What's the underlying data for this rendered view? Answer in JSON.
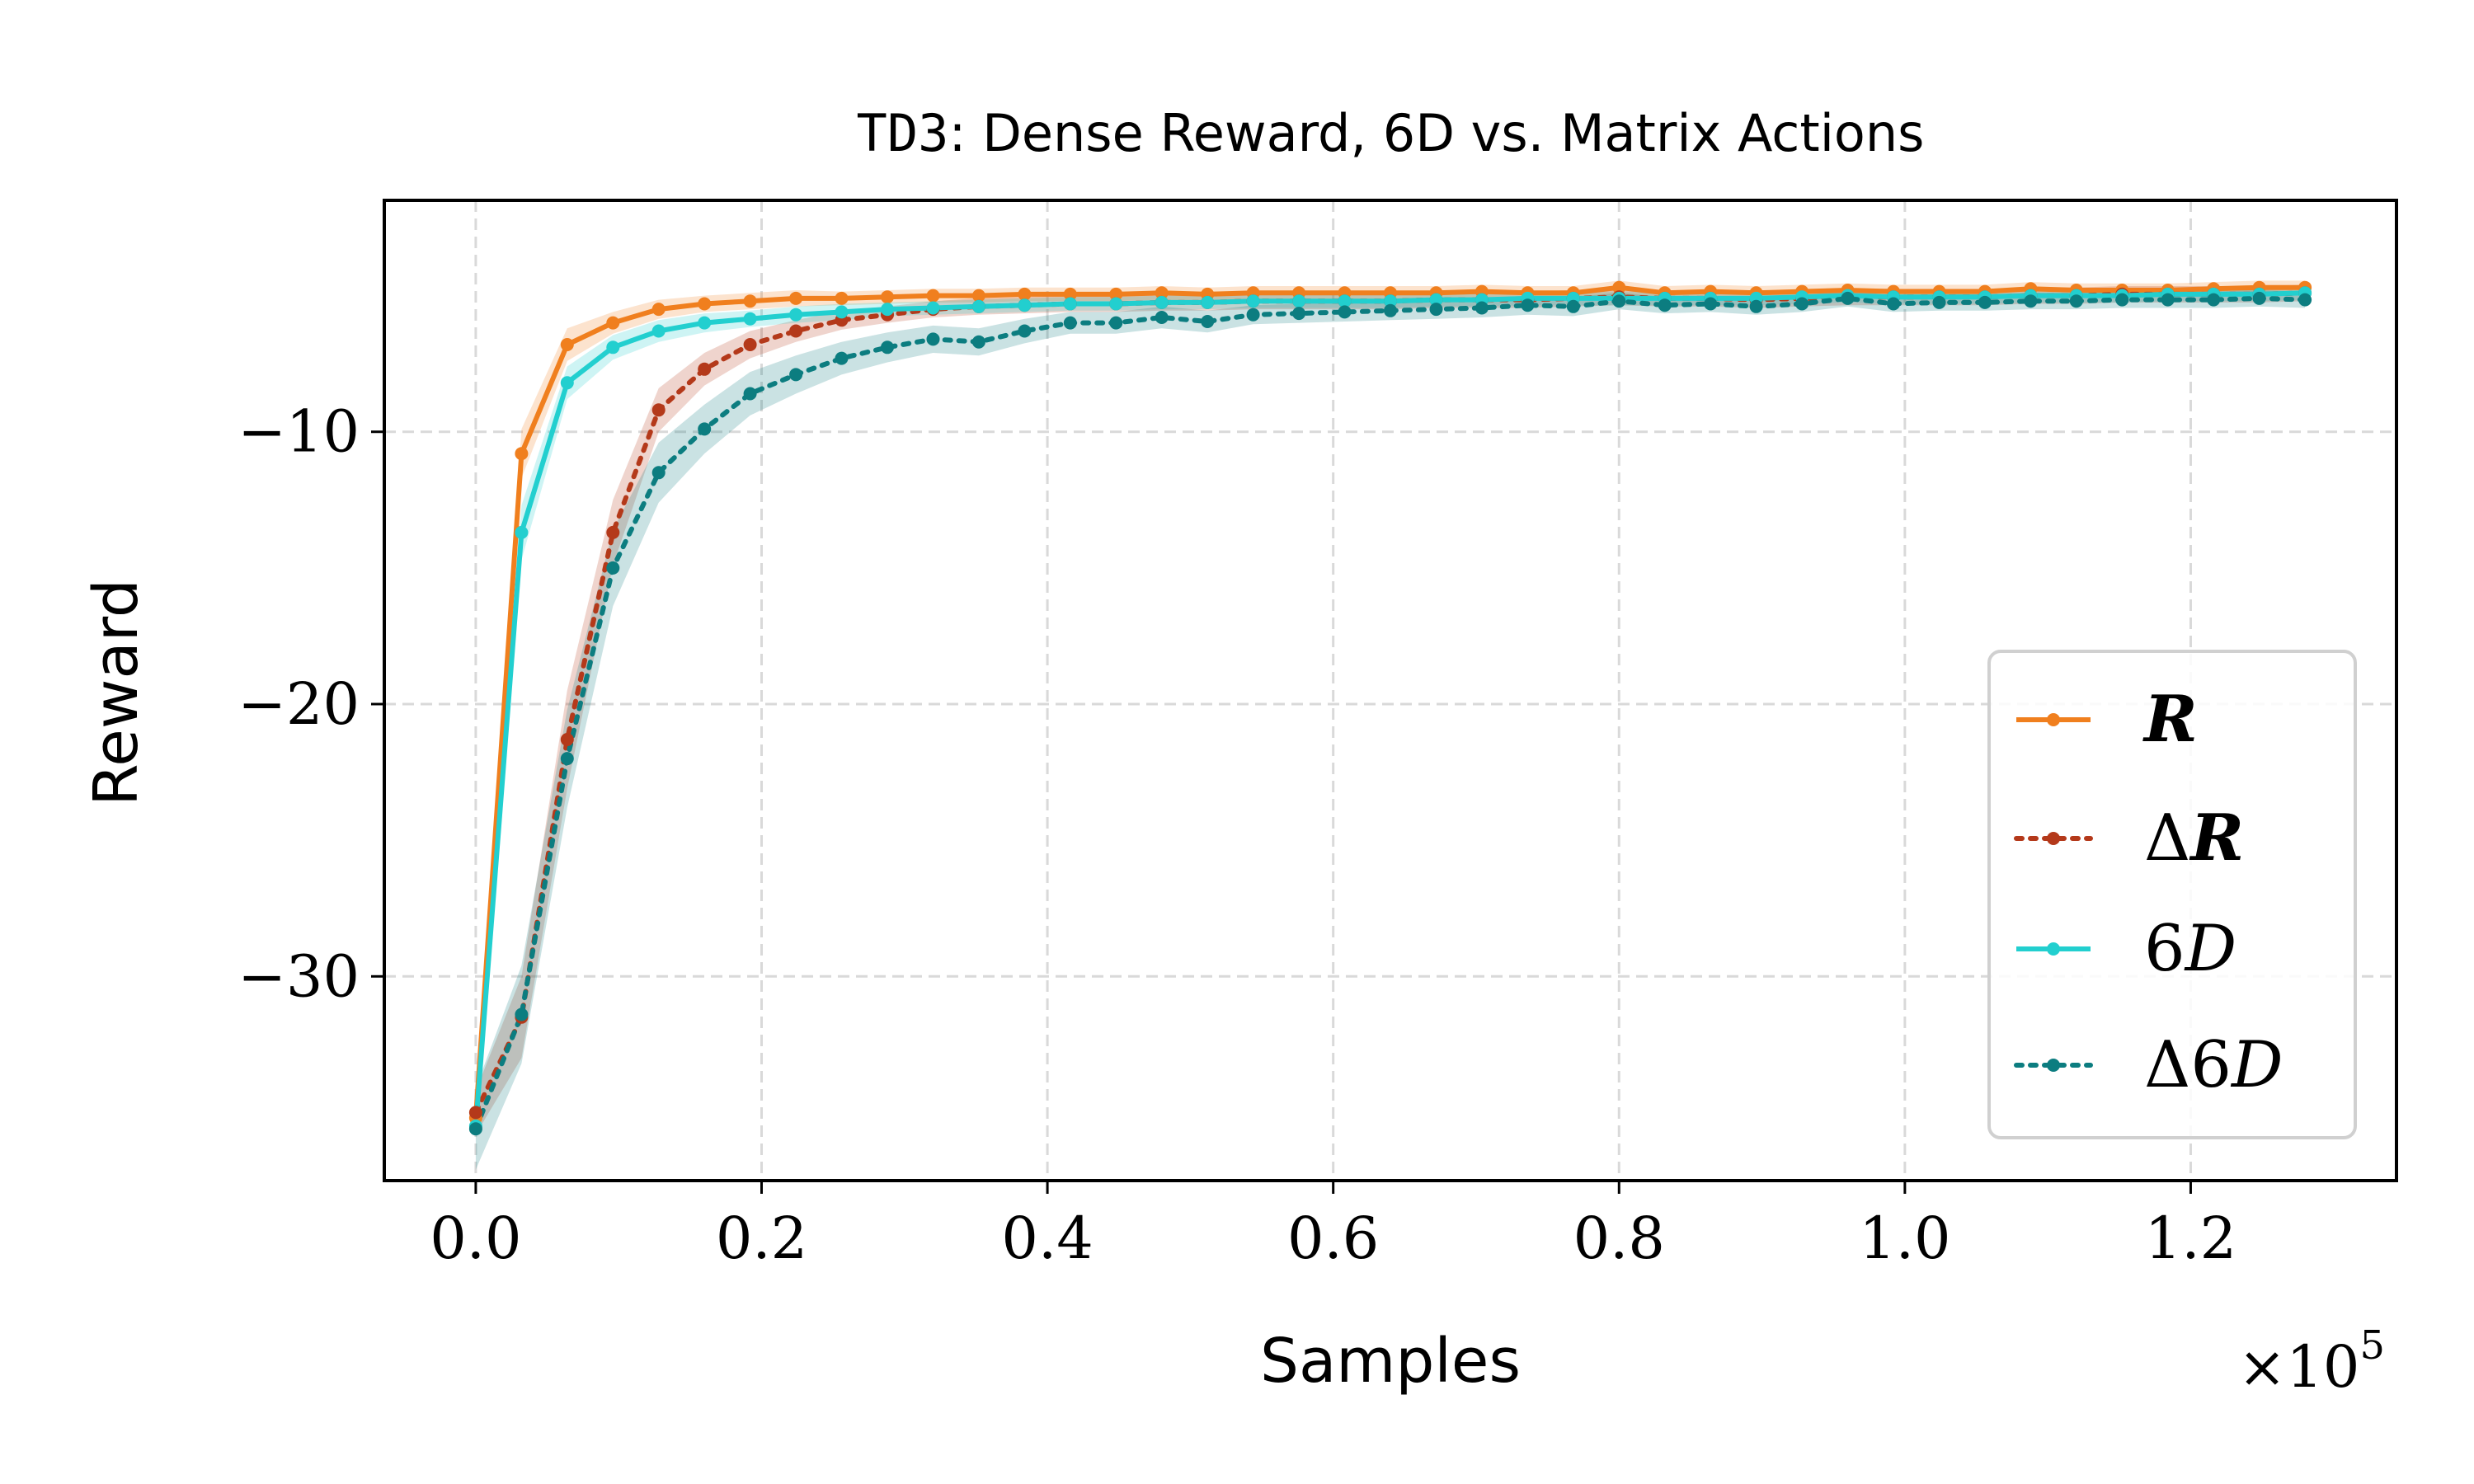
{
  "chart_data": {
    "type": "line",
    "title_code": "TD3",
    "title_rest": ": Dense Reward, 6D vs. Matrix Actions",
    "xlabel": "Samples",
    "ylabel": "Reward",
    "x_multiplier": "×10",
    "x_multiplier_exp": "5",
    "xlim": [
      -0.064,
      1.344
    ],
    "ylim": [
      -37.5,
      -1.5
    ],
    "xticks": [
      0.0,
      0.2,
      0.4,
      0.6,
      0.8,
      1.0,
      1.2
    ],
    "xtick_labels": [
      "0.0",
      "0.2",
      "0.4",
      "0.6",
      "0.8",
      "1.0",
      "1.2"
    ],
    "yticks": [
      -10,
      -20,
      -30
    ],
    "ytick_labels": [
      "−10",
      "−20",
      "−30"
    ],
    "grid": true,
    "legend_position": "lower-right",
    "x": [
      0,
      0.032,
      0.064,
      0.096,
      0.128,
      0.16,
      0.192,
      0.224,
      0.256,
      0.288,
      0.32,
      0.352,
      0.384,
      0.416,
      0.448,
      0.48,
      0.512,
      0.544,
      0.576,
      0.608,
      0.64,
      0.672,
      0.704,
      0.736,
      0.768,
      0.8,
      0.832,
      0.864,
      0.896,
      0.928,
      0.96,
      0.992,
      1.024,
      1.056,
      1.088,
      1.12,
      1.152,
      1.184,
      1.216,
      1.248,
      1.28
    ],
    "series": [
      {
        "name": "R",
        "label_prefix": "",
        "label_main": "R",
        "label_style": "bold-italic",
        "color": "#f07f1e",
        "dash": "solid",
        "values": [
          -35.2,
          -10.8,
          -6.8,
          -6.0,
          -5.5,
          -5.3,
          -5.2,
          -5.1,
          -5.1,
          -5.05,
          -5.0,
          -5.0,
          -4.95,
          -4.95,
          -4.95,
          -4.9,
          -4.95,
          -4.9,
          -4.9,
          -4.9,
          -4.9,
          -4.9,
          -4.85,
          -4.9,
          -4.9,
          -4.7,
          -4.9,
          -4.85,
          -4.9,
          -4.85,
          -4.8,
          -4.85,
          -4.85,
          -4.85,
          -4.75,
          -4.8,
          -4.8,
          -4.8,
          -4.75,
          -4.7,
          -4.7
        ],
        "band": [
          0.5,
          0.9,
          0.6,
          0.4,
          0.35,
          0.3,
          0.3,
          0.3,
          0.25,
          0.25,
          0.25,
          0.25,
          0.25,
          0.25,
          0.25,
          0.25,
          0.25,
          0.25,
          0.25,
          0.25,
          0.25,
          0.25,
          0.25,
          0.25,
          0.25,
          0.25,
          0.25,
          0.25,
          0.25,
          0.25,
          0.25,
          0.25,
          0.25,
          0.25,
          0.25,
          0.25,
          0.25,
          0.25,
          0.25,
          0.25,
          0.25
        ]
      },
      {
        "name": "ΔR",
        "label_prefix": "Δ",
        "label_main": "R",
        "label_style": "bold-italic",
        "color": "#b4391a",
        "dash": "dotted",
        "values": [
          -35.0,
          -31.5,
          -21.3,
          -13.7,
          -9.2,
          -7.7,
          -6.8,
          -6.3,
          -5.9,
          -5.7,
          -5.5,
          -5.4,
          -5.35,
          -5.3,
          -5.3,
          -5.25,
          -5.25,
          -5.2,
          -5.2,
          -5.2,
          -5.2,
          -5.15,
          -5.15,
          -5.15,
          -5.1,
          -5.05,
          -5.1,
          -5.1,
          -5.15,
          -5.1,
          -5.05,
          -5.05,
          -5.05,
          -5.05,
          -5.0,
          -5.0,
          -4.95,
          -4.95,
          -4.95,
          -4.95,
          -4.9
        ],
        "band": [
          0.8,
          1.5,
          1.8,
          1.2,
          0.8,
          0.6,
          0.5,
          0.4,
          0.35,
          0.3,
          0.3,
          0.3,
          0.3,
          0.3,
          0.3,
          0.3,
          0.3,
          0.3,
          0.3,
          0.3,
          0.3,
          0.3,
          0.3,
          0.3,
          0.3,
          0.3,
          0.3,
          0.3,
          0.3,
          0.3,
          0.3,
          0.3,
          0.3,
          0.3,
          0.3,
          0.3,
          0.3,
          0.3,
          0.3,
          0.3,
          0.3
        ]
      },
      {
        "name": "6D",
        "label_prefix": "6",
        "label_main": "D",
        "label_style": "italic",
        "color": "#22cfcf",
        "dash": "solid",
        "values": [
          -35.5,
          -13.7,
          -8.2,
          -6.9,
          -6.3,
          -6.0,
          -5.85,
          -5.7,
          -5.6,
          -5.5,
          -5.45,
          -5.4,
          -5.35,
          -5.3,
          -5.3,
          -5.25,
          -5.25,
          -5.2,
          -5.2,
          -5.2,
          -5.2,
          -5.15,
          -5.15,
          -5.1,
          -5.1,
          -5.1,
          -5.1,
          -5.1,
          -5.1,
          -5.05,
          -5.0,
          -5.05,
          -5.05,
          -5.05,
          -5.0,
          -5.0,
          -5.0,
          -4.95,
          -4.95,
          -4.95,
          -4.9
        ],
        "band": [
          0.5,
          1.0,
          0.6,
          0.45,
          0.4,
          0.35,
          0.3,
          0.3,
          0.3,
          0.25,
          0.25,
          0.25,
          0.25,
          0.25,
          0.25,
          0.25,
          0.25,
          0.25,
          0.25,
          0.25,
          0.25,
          0.25,
          0.25,
          0.25,
          0.25,
          0.25,
          0.25,
          0.25,
          0.25,
          0.25,
          0.25,
          0.25,
          0.25,
          0.25,
          0.25,
          0.25,
          0.25,
          0.25,
          0.25,
          0.25,
          0.25
        ]
      },
      {
        "name": "Δ6D",
        "label_prefix": "Δ6",
        "label_main": "D",
        "label_style": "italic",
        "color": "#0c7d80",
        "dash": "dotted",
        "values": [
          -35.6,
          -31.4,
          -22.0,
          -15.0,
          -11.5,
          -9.9,
          -8.6,
          -7.9,
          -7.3,
          -6.9,
          -6.6,
          -6.7,
          -6.3,
          -6.0,
          -6.0,
          -5.8,
          -5.95,
          -5.7,
          -5.65,
          -5.6,
          -5.55,
          -5.5,
          -5.45,
          -5.35,
          -5.4,
          -5.2,
          -5.35,
          -5.3,
          -5.4,
          -5.3,
          -5.1,
          -5.3,
          -5.25,
          -5.25,
          -5.2,
          -5.2,
          -5.15,
          -5.15,
          -5.15,
          -5.1,
          -5.15
        ],
        "band": [
          1.5,
          1.8,
          1.8,
          1.4,
          1.1,
          0.9,
          0.8,
          0.7,
          0.6,
          0.55,
          0.5,
          0.5,
          0.45,
          0.4,
          0.4,
          0.4,
          0.4,
          0.35,
          0.35,
          0.35,
          0.35,
          0.35,
          0.35,
          0.35,
          0.35,
          0.3,
          0.3,
          0.3,
          0.3,
          0.3,
          0.3,
          0.3,
          0.3,
          0.3,
          0.3,
          0.3,
          0.3,
          0.3,
          0.3,
          0.3,
          0.3
        ]
      }
    ]
  }
}
